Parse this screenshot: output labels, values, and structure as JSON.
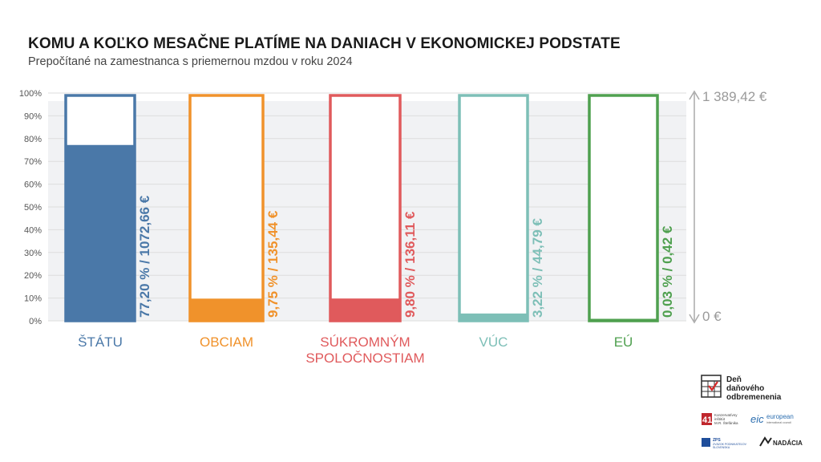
{
  "title": "KOMU A KOĽKO MESAČNE PLATÍME NA DANIACH V EKONOMICKEJ PODSTATE",
  "subtitle": "Prepočítané na zamestnanca s priemernou mzdou v roku 2024",
  "chart_data": {
    "type": "bar",
    "yticks": [
      "0%",
      "10%",
      "20%",
      "30%",
      "40%",
      "50%",
      "60%",
      "70%",
      "80%",
      "90%",
      "100%"
    ],
    "ylim": [
      0,
      100
    ],
    "categories": [
      {
        "label": "ŠTÁTU",
        "label_line2": "",
        "percent": 77.2,
        "percent_label": "77,20 %",
        "amount_label": "1072,66 €",
        "color": "#4a78a8"
      },
      {
        "label": "OBCIAM",
        "label_line2": "",
        "percent": 9.75,
        "percent_label": "9,75 %",
        "amount_label": "135,44 €",
        "color": "#f0922b"
      },
      {
        "label": "SÚKROMNÝM",
        "label_line2": "SPOLOČNOSTIAM",
        "percent": 9.8,
        "percent_label": "9,80 %",
        "amount_label": "136,11 €",
        "color": "#e05a5c"
      },
      {
        "label": "VÚC",
        "label_line2": "",
        "percent": 3.22,
        "percent_label": "3,22 %",
        "amount_label": "44,79 €",
        "color": "#7dbfb7"
      },
      {
        "label": "EÚ",
        "label_line2": "",
        "percent": 0.03,
        "percent_label": "0,03 %",
        "amount_label": "0,42 €",
        "color": "#4fa04f"
      }
    ],
    "right_axis": {
      "top_label": "1 389,42 €",
      "bottom_label": "0 €"
    }
  },
  "logos": {
    "den_line1": "Deň",
    "den_line2": "daňového",
    "den_line3": "odbremenenia",
    "ki_line1": "Konzervatívny",
    "ki_line2": "inštitút",
    "ki_line3": "M.R. Štefánika",
    "eic_mark": "eic",
    "eic_line1": "european",
    "eic_line2": "international council",
    "zps_line1": "ZPS",
    "zps_line2": "ZVÄZOK PODNIKATEĽOV",
    "zps_line3": "SLOVENSKA",
    "nadacia_line1": "NADÁCIA"
  }
}
